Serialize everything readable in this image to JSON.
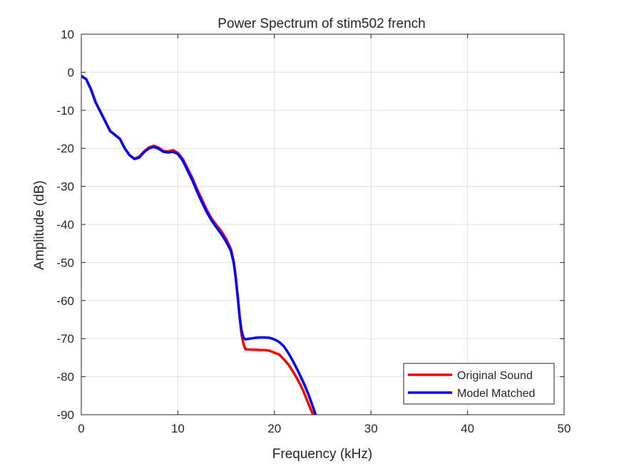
{
  "chart_data": {
    "type": "line",
    "title": "Power Spectrum of stim502 french",
    "xlabel": "Frequency (kHz)",
    "ylabel": "Amplitude (dB)",
    "xlim": [
      0,
      50
    ],
    "ylim": [
      -90,
      10
    ],
    "xticks": [
      0,
      10,
      20,
      30,
      40,
      50
    ],
    "yticks": [
      10,
      0,
      -10,
      -20,
      -30,
      -40,
      -50,
      -60,
      -70,
      -80,
      -90
    ],
    "grid": true,
    "legend_position": "bottom-right",
    "series": [
      {
        "name": "Original Sound",
        "color": "#ff0000",
        "x": [
          0,
          0.5,
          1,
          1.5,
          2,
          2.5,
          3,
          3.5,
          4,
          4.5,
          5,
          5.5,
          6,
          6.5,
          7,
          7.5,
          8,
          8.5,
          9,
          9.5,
          10,
          10.5,
          11,
          11.5,
          12,
          12.5,
          13,
          13.5,
          14,
          14.5,
          15,
          15.5,
          15.8,
          16,
          16.2,
          16.4,
          16.6,
          16.8,
          17,
          17.5,
          18,
          18.5,
          19,
          19.5,
          20,
          20.5,
          21,
          21.5,
          22,
          22.5,
          23,
          23.5,
          24,
          24.2
        ],
        "y": [
          -1,
          -1.8,
          -4.5,
          -8,
          -10.5,
          -13,
          -15.5,
          -16.5,
          -17.5,
          -20,
          -21.8,
          -22.7,
          -22.2,
          -20.8,
          -19.8,
          -19.3,
          -19.8,
          -20.7,
          -20.8,
          -20.5,
          -21.2,
          -22.8,
          -25.2,
          -27.8,
          -30.8,
          -33.5,
          -36.2,
          -38.5,
          -40.2,
          -41.8,
          -43.8,
          -46.5,
          -50,
          -54,
          -59,
          -64.5,
          -69,
          -71.5,
          -72.8,
          -72.9,
          -72.9,
          -73,
          -73,
          -73.2,
          -73.7,
          -74.2,
          -75.5,
          -77,
          -79,
          -81.2,
          -83.8,
          -87,
          -90,
          -91
        ]
      },
      {
        "name": "Model Matched",
        "color": "#0000ff",
        "x": [
          0,
          0.5,
          1,
          1.5,
          2,
          2.5,
          3,
          3.5,
          4,
          4.5,
          5,
          5.5,
          6,
          6.5,
          7,
          7.5,
          8,
          8.5,
          9,
          9.5,
          10,
          10.5,
          11,
          11.5,
          12,
          12.5,
          13,
          13.5,
          14,
          14.5,
          15,
          15.5,
          15.8,
          16,
          16.2,
          16.4,
          16.6,
          16.8,
          17,
          17.5,
          18,
          18.5,
          19,
          19.5,
          20,
          20.5,
          21,
          21.5,
          22,
          22.5,
          23,
          23.5,
          24,
          24.4
        ],
        "y": [
          -1,
          -1.8,
          -4.5,
          -8,
          -10.5,
          -13,
          -15.5,
          -16.5,
          -17.5,
          -20,
          -21.8,
          -22.8,
          -22.4,
          -21,
          -20,
          -19.6,
          -20.1,
          -20.9,
          -21.1,
          -20.9,
          -21.5,
          -23.2,
          -25.8,
          -28.4,
          -31.4,
          -34.2,
          -36.8,
          -39,
          -40.8,
          -42.5,
          -44.5,
          -47,
          -50.3,
          -54.2,
          -59,
          -64.2,
          -68,
          -69.8,
          -70.2,
          -70,
          -69.8,
          -69.7,
          -69.7,
          -69.8,
          -70.2,
          -70.9,
          -72.1,
          -74,
          -76.3,
          -78.8,
          -81.5,
          -84.5,
          -88,
          -91
        ]
      }
    ]
  }
}
